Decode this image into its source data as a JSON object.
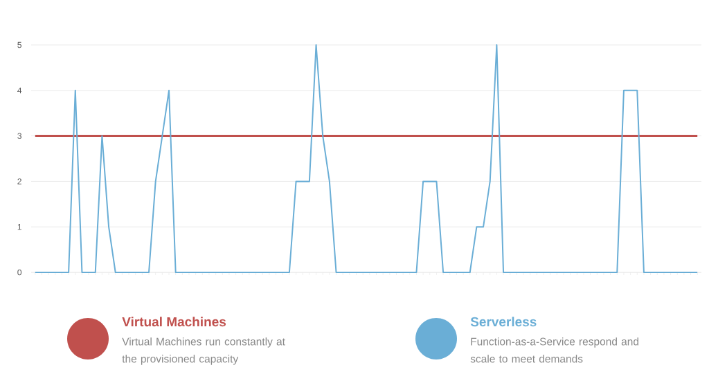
{
  "chart_data": {
    "type": "line",
    "categories": [
      null,
      null,
      null,
      null,
      null,
      null,
      null,
      null,
      null,
      null,
      null,
      null,
      null,
      null,
      null,
      null,
      null,
      null,
      null,
      null,
      null,
      null,
      null,
      null,
      null,
      null,
      null,
      null,
      null,
      null,
      null,
      null,
      null,
      null,
      null,
      null,
      null,
      null,
      null,
      null,
      null,
      null,
      null,
      null,
      null,
      null,
      null,
      null,
      null,
      null,
      null,
      null,
      null,
      null,
      null,
      null,
      null,
      null,
      null,
      null,
      null,
      null,
      null,
      null,
      null,
      null,
      null,
      null,
      null,
      null,
      null,
      null,
      null,
      null,
      null,
      null,
      null,
      null,
      null,
      null,
      null,
      null,
      null,
      null,
      null,
      null,
      null,
      null,
      null,
      null,
      null,
      null,
      null,
      null,
      null,
      null,
      null,
      null,
      null,
      null
    ],
    "series": [
      {
        "name": "Virtual Machines",
        "color": "#c0504d",
        "values": [
          3,
          3,
          3,
          3,
          3,
          3,
          3,
          3,
          3,
          3,
          3,
          3,
          3,
          3,
          3,
          3,
          3,
          3,
          3,
          3,
          3,
          3,
          3,
          3,
          3,
          3,
          3,
          3,
          3,
          3,
          3,
          3,
          3,
          3,
          3,
          3,
          3,
          3,
          3,
          3,
          3,
          3,
          3,
          3,
          3,
          3,
          3,
          3,
          3,
          3,
          3,
          3,
          3,
          3,
          3,
          3,
          3,
          3,
          3,
          3,
          3,
          3,
          3,
          3,
          3,
          3,
          3,
          3,
          3,
          3,
          3,
          3,
          3,
          3,
          3,
          3,
          3,
          3,
          3,
          3,
          3,
          3,
          3,
          3,
          3,
          3,
          3,
          3,
          3,
          3,
          3,
          3,
          3,
          3,
          3,
          3,
          3,
          3,
          3,
          3
        ]
      },
      {
        "name": "Serverless",
        "color": "#6aaed6",
        "values": [
          0,
          0,
          0,
          0,
          0,
          0,
          4,
          0,
          0,
          0,
          3,
          1,
          0,
          0,
          0,
          0,
          0,
          0,
          2,
          3,
          4,
          0,
          0,
          0,
          0,
          0,
          0,
          0,
          0,
          0,
          0,
          0,
          0,
          0,
          0,
          0,
          0,
          0,
          0,
          2,
          2,
          2,
          5,
          3,
          2,
          0,
          0,
          0,
          0,
          0,
          0,
          0,
          0,
          0,
          0,
          0,
          0,
          0,
          2,
          2,
          2,
          0,
          0,
          0,
          0,
          0,
          1,
          1,
          2,
          5,
          0,
          0,
          0,
          0,
          0,
          0,
          0,
          0,
          0,
          0,
          0,
          0,
          0,
          0,
          0,
          0,
          0,
          0,
          4,
          4,
          4,
          0,
          0,
          0,
          0,
          0,
          0,
          0,
          0,
          0
        ]
      }
    ],
    "ylim": [
      0,
      5
    ],
    "yticks": [
      0,
      1,
      2,
      3,
      4,
      5
    ],
    "grid": "y",
    "legend": "bottom",
    "marker": "none",
    "line_style": "solid",
    "annotations": [
      "Virtual Machines run constantly at the provisioned capacity",
      "Function-as-a-Service respond and scale to meet demands"
    ]
  }
}
